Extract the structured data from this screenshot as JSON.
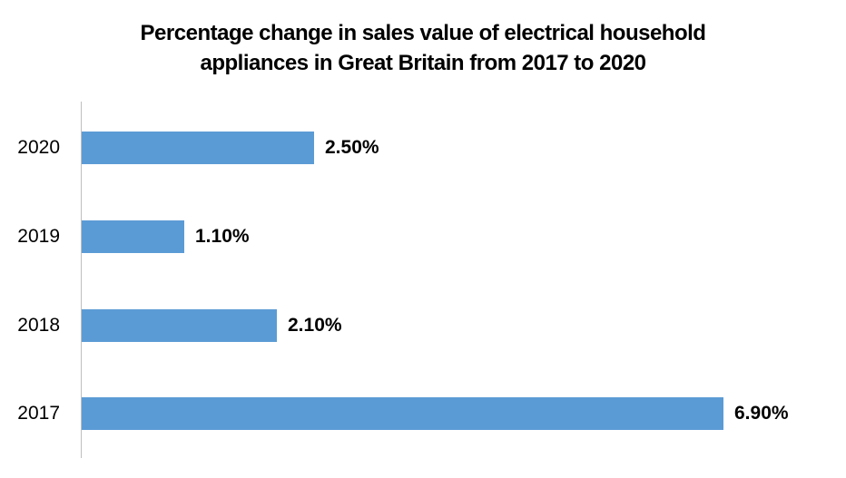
{
  "chart_data": {
    "type": "bar",
    "orientation": "horizontal",
    "title": "Percentage change in sales value of electrical household appliances in Great Britain from 2017 to 2020",
    "categories": [
      "2020",
      "2019",
      "2018",
      "2017"
    ],
    "values": [
      2.5,
      1.1,
      2.1,
      6.9
    ],
    "value_labels": [
      "2.50%",
      "1.10%",
      "2.10%",
      "6.90%"
    ],
    "xlabel": "",
    "ylabel": "",
    "xlim": [
      0,
      6.9
    ],
    "grid": false,
    "legend": false,
    "bar_color": "#5B9BD5",
    "axis_line_color": "#BFBFBF",
    "text_color": "#000000"
  }
}
